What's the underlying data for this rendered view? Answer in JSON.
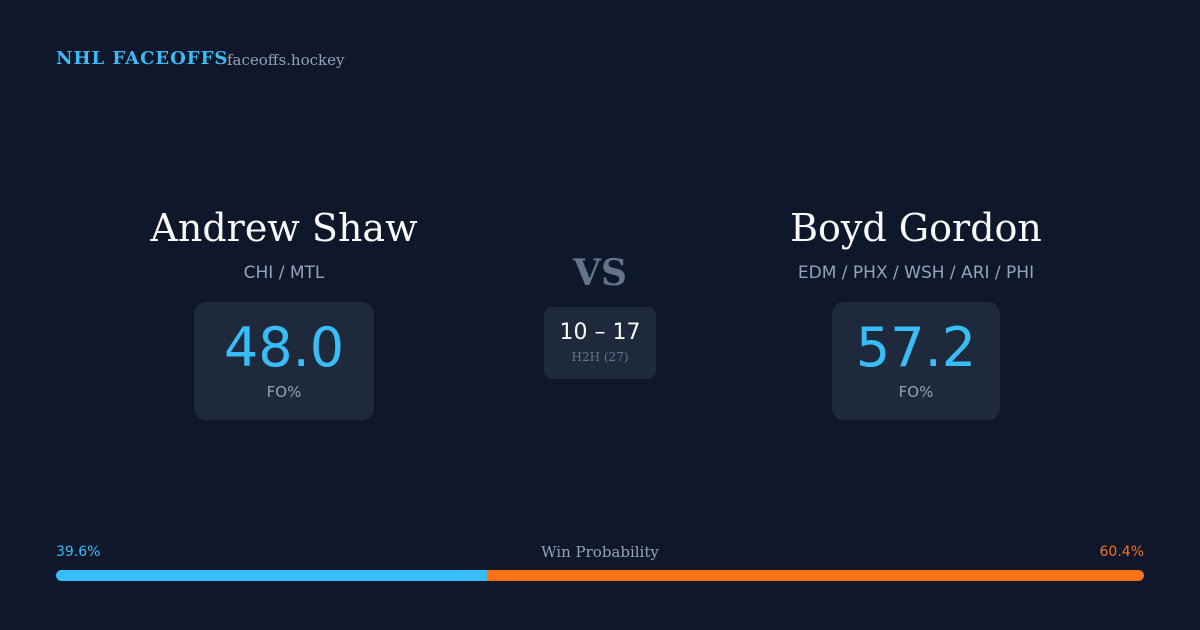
{
  "header": {
    "title": "NHL FACEOFFS",
    "site": "faceoffs.hockey"
  },
  "players": [
    {
      "name": "Andrew Shaw",
      "teams": "CHI / MTL",
      "fo_pct": "48.0",
      "fo_label": "FO%"
    },
    {
      "name": "Boyd Gordon",
      "teams": "EDM / PHX / WSH / ARI / PHI",
      "fo_pct": "57.2",
      "fo_label": "FO%"
    }
  ],
  "vs": "VS",
  "h2h": {
    "score": "10 – 17",
    "label": "H2H (27)"
  },
  "win_probability": {
    "title": "Win Probability",
    "segments": [
      {
        "value": 39.6,
        "label": "39.6%",
        "color": "#38bdf8"
      },
      {
        "value": 60.4,
        "label": "60.4%",
        "color": "#f97316"
      }
    ]
  }
}
